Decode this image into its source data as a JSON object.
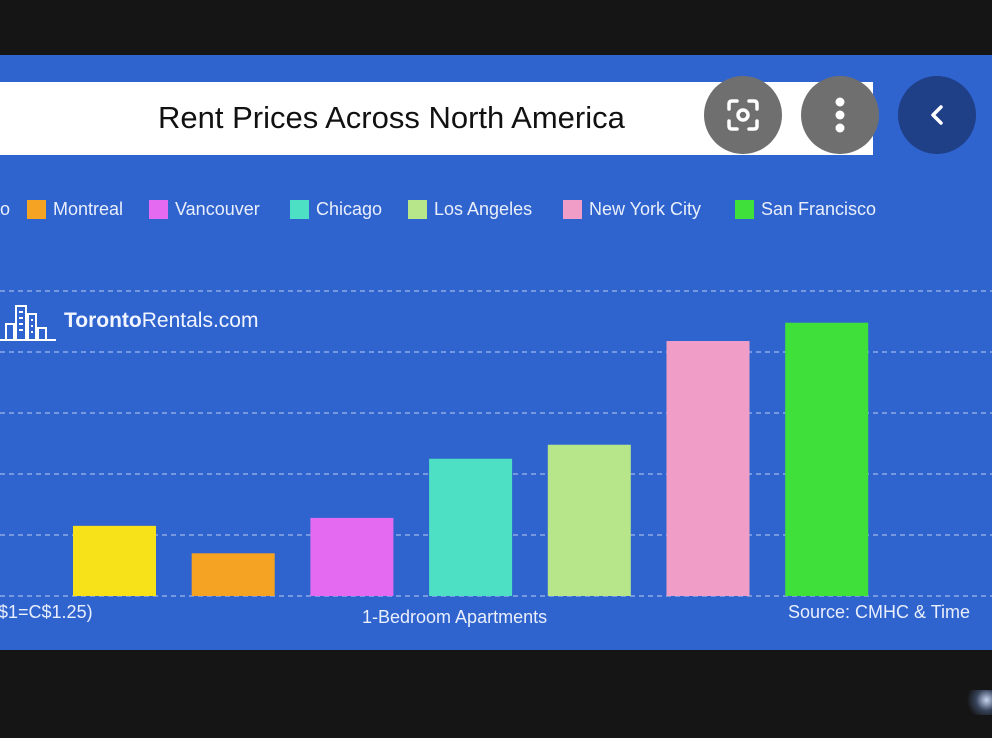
{
  "chart_data": {
    "type": "bar",
    "title": "Rent Prices Across North America",
    "xlabel": "1-Bedroom Apartments",
    "categories": [
      "Toronto",
      "Montreal",
      "Vancouver",
      "Chicago",
      "Los Angeles",
      "New York City",
      "San Francisco"
    ],
    "visible_legend": [
      "o",
      "Montreal",
      "Vancouver",
      "Chicago",
      "Los Angeles",
      "New York City",
      "San Francisco"
    ],
    "values": [
      1.15,
      0.7,
      1.28,
      2.25,
      2.48,
      4.18,
      4.48
    ],
    "ylim": [
      0,
      5
    ],
    "grid": true,
    "colors": [
      "#f7e21a",
      "#f5a322",
      "#e56af2",
      "#4ee0c4",
      "#b7e58a",
      "#f09ec7",
      "#3fe03a"
    ],
    "footnote_left": "$1=C$1.25)",
    "source": "Source: CMHC & Time"
  },
  "brand": {
    "bold": "Toronto",
    "regular": "Rentals.com"
  },
  "icons": {
    "lens": "google-lens-icon",
    "more": "more-vert-icon",
    "back": "chevron-left-icon"
  }
}
